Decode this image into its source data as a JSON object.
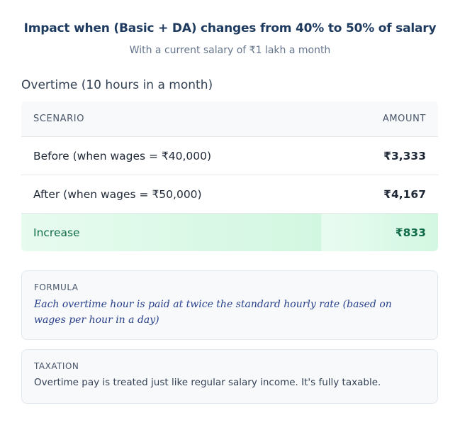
{
  "header": {
    "title": "Impact when (Basic + DA) changes from 40% to 50% of salary",
    "subtitle": "With a current salary of ₹1 lakh a month"
  },
  "section": {
    "heading": "Overtime (10 hours in a month)"
  },
  "table": {
    "columns": [
      "SCENARIO",
      "AMOUNT"
    ],
    "rows": [
      {
        "scenario": "Before (when wages = ₹40,000)",
        "amount": "₹3,333"
      },
      {
        "scenario": "After (when wages = ₹50,000)",
        "amount": "₹4,167"
      }
    ],
    "increase": {
      "label": "Increase",
      "amount": "₹833"
    }
  },
  "formula": {
    "label": "FORMULA",
    "text": "Each overtime hour is paid at twice the standard hourly rate (based on wages per hour in a day)"
  },
  "taxation": {
    "label": "TAXATION",
    "text": "Overtime pay is treated just like regular salary income. It's fully taxable."
  },
  "colors": {
    "title": "#1e3a5f",
    "increase_bg": "#d2f7e1",
    "increase_text": "#0f6b49",
    "formula_text": "#27408b"
  }
}
